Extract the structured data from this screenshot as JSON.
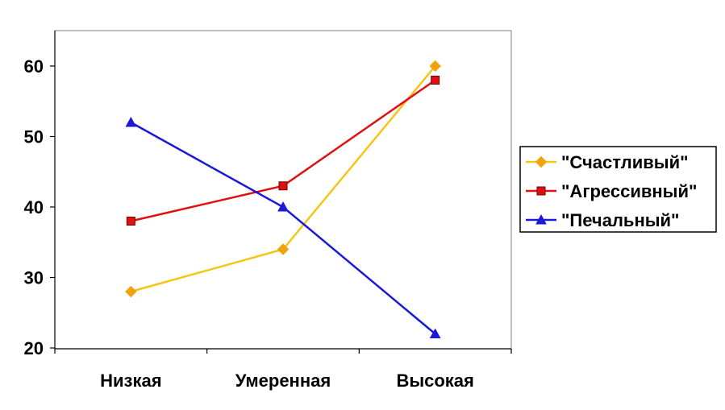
{
  "chart_data": {
    "type": "line",
    "categories": [
      "Низкая",
      "Умеренная",
      "Высокая"
    ],
    "series": [
      {
        "name": "\"Счастливый\"",
        "values": [
          28,
          34,
          60
        ],
        "color": "#f5c518",
        "marker_color": "#f0a30a",
        "marker": "diamond"
      },
      {
        "name": "\"Агрессивный\"",
        "values": [
          38,
          43,
          58
        ],
        "color": "#e01010",
        "marker_color": "#e01010",
        "marker": "square"
      },
      {
        "name": "\"Печальный\"",
        "values": [
          52,
          40,
          22
        ],
        "color": "#1a1ad6",
        "marker_color": "#1a1ad6",
        "marker": "triangle"
      }
    ],
    "ylim": [
      20,
      65
    ],
    "yticks": [
      20,
      30,
      40,
      50,
      60
    ],
    "title": "",
    "xlabel": "",
    "ylabel": "",
    "grid": false,
    "legend_position": "right"
  }
}
